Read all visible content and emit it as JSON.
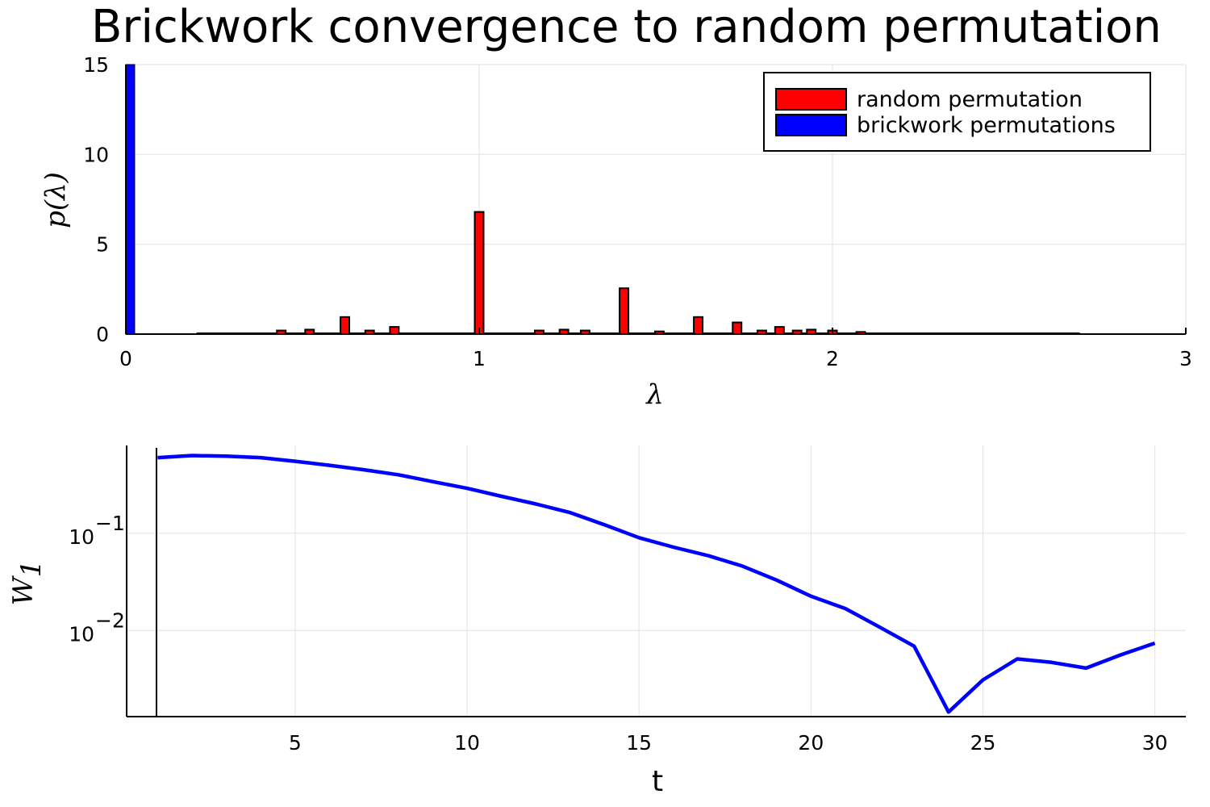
{
  "title": "Brickwork convergence to random permutation",
  "chart_data": [
    {
      "type": "bar",
      "xlabel": "λ",
      "ylabel": "p(λ)",
      "xlim": [
        0,
        3
      ],
      "ylim": [
        0,
        15
      ],
      "xticks": [
        "0",
        "1",
        "2",
        "3"
      ],
      "yticks": [
        "0",
        "5",
        "10",
        "15"
      ],
      "grid": true,
      "legend_position": "top-right",
      "series": [
        {
          "name": "random permutation",
          "color": "#ff0000",
          "bin_width": 0.025,
          "bars": [
            {
              "x": 0.44,
              "y": 0.2
            },
            {
              "x": 0.52,
              "y": 0.25
            },
            {
              "x": 0.62,
              "y": 0.95
            },
            {
              "x": 0.69,
              "y": 0.2
            },
            {
              "x": 0.76,
              "y": 0.4
            },
            {
              "x": 1.0,
              "y": 6.8
            },
            {
              "x": 1.17,
              "y": 0.2
            },
            {
              "x": 1.24,
              "y": 0.25
            },
            {
              "x": 1.3,
              "y": 0.2
            },
            {
              "x": 1.41,
              "y": 2.55
            },
            {
              "x": 1.51,
              "y": 0.15
            },
            {
              "x": 1.62,
              "y": 0.95
            },
            {
              "x": 1.73,
              "y": 0.65
            },
            {
              "x": 1.8,
              "y": 0.2
            },
            {
              "x": 1.85,
              "y": 0.4
            },
            {
              "x": 1.9,
              "y": 0.2
            },
            {
              "x": 1.94,
              "y": 0.25
            },
            {
              "x": 2.0,
              "y": 0.2
            },
            {
              "x": 2.08,
              "y": 0.12
            }
          ]
        },
        {
          "name": "brickwork permutations",
          "color": "#0000ff",
          "bin_width": 0.025,
          "bars": [
            {
              "x": 0.0125,
              "y": 15
            }
          ]
        }
      ]
    },
    {
      "type": "line",
      "xlabel": "t",
      "ylabel": "W_1",
      "y_scale": "log",
      "xlim": [
        0.1,
        30.9
      ],
      "ylim": [
        0.0013,
        0.8
      ],
      "xticks": [
        "5",
        "10",
        "15",
        "20",
        "25",
        "30"
      ],
      "yticks": [
        {
          "base": "10",
          "exp": "−1",
          "value": 0.1
        },
        {
          "base": "10",
          "exp": "−2",
          "value": 0.01
        }
      ],
      "grid": true,
      "series": [
        {
          "color": "#0000ff",
          "x": [
            1,
            2,
            3,
            4,
            5,
            6,
            7,
            8,
            9,
            10,
            11,
            12,
            13,
            14,
            15,
            16,
            17,
            18,
            19,
            20,
            21,
            22,
            23,
            24,
            25,
            26,
            27,
            28,
            29,
            30
          ],
          "y": [
            0.6,
            0.63,
            0.62,
            0.6,
            0.55,
            0.5,
            0.45,
            0.4,
            0.34,
            0.29,
            0.24,
            0.2,
            0.163,
            0.122,
            0.09,
            0.072,
            0.059,
            0.046,
            0.033,
            0.0225,
            0.0168,
            0.0108,
            0.0069,
            0.00145,
            0.0031,
            0.0051,
            0.0047,
            0.0041,
            0.0056,
            0.0074
          ]
        }
      ]
    }
  ]
}
